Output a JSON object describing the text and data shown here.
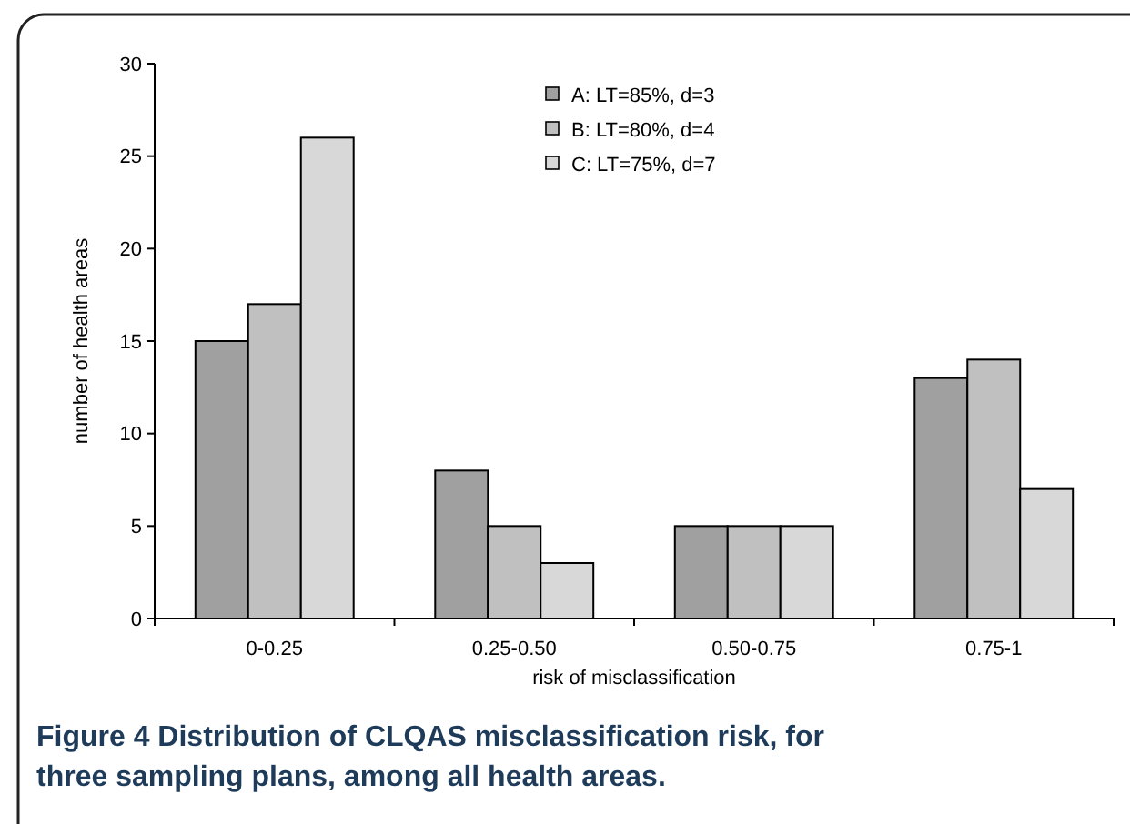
{
  "chart_data": {
    "type": "bar",
    "xlabel": "risk of misclassification",
    "ylabel": "number of  health areas",
    "categories": [
      "0-0.25",
      "0.25-0.50",
      "0.50-0.75",
      "0.75-1"
    ],
    "series": [
      {
        "name": "A: LT=85%, d=3",
        "color": "#a0a0a0",
        "values": [
          15,
          8,
          5,
          13
        ]
      },
      {
        "name": "B: LT=80%, d=4",
        "color": "#c0c0c0",
        "values": [
          17,
          5,
          5,
          14
        ]
      },
      {
        "name": "C: LT=75%, d=7",
        "color": "#d8d8d8",
        "values": [
          26,
          3,
          5,
          7
        ]
      }
    ],
    "ylim": [
      0,
      30
    ],
    "yticks": [
      0,
      5,
      10,
      15,
      20,
      25,
      30
    ],
    "grid": false,
    "legend": "top",
    "annotations": [
      "Figure 4 Distribution of CLQAS misclassification risk, for three sampling plans, among all health areas."
    ]
  }
}
